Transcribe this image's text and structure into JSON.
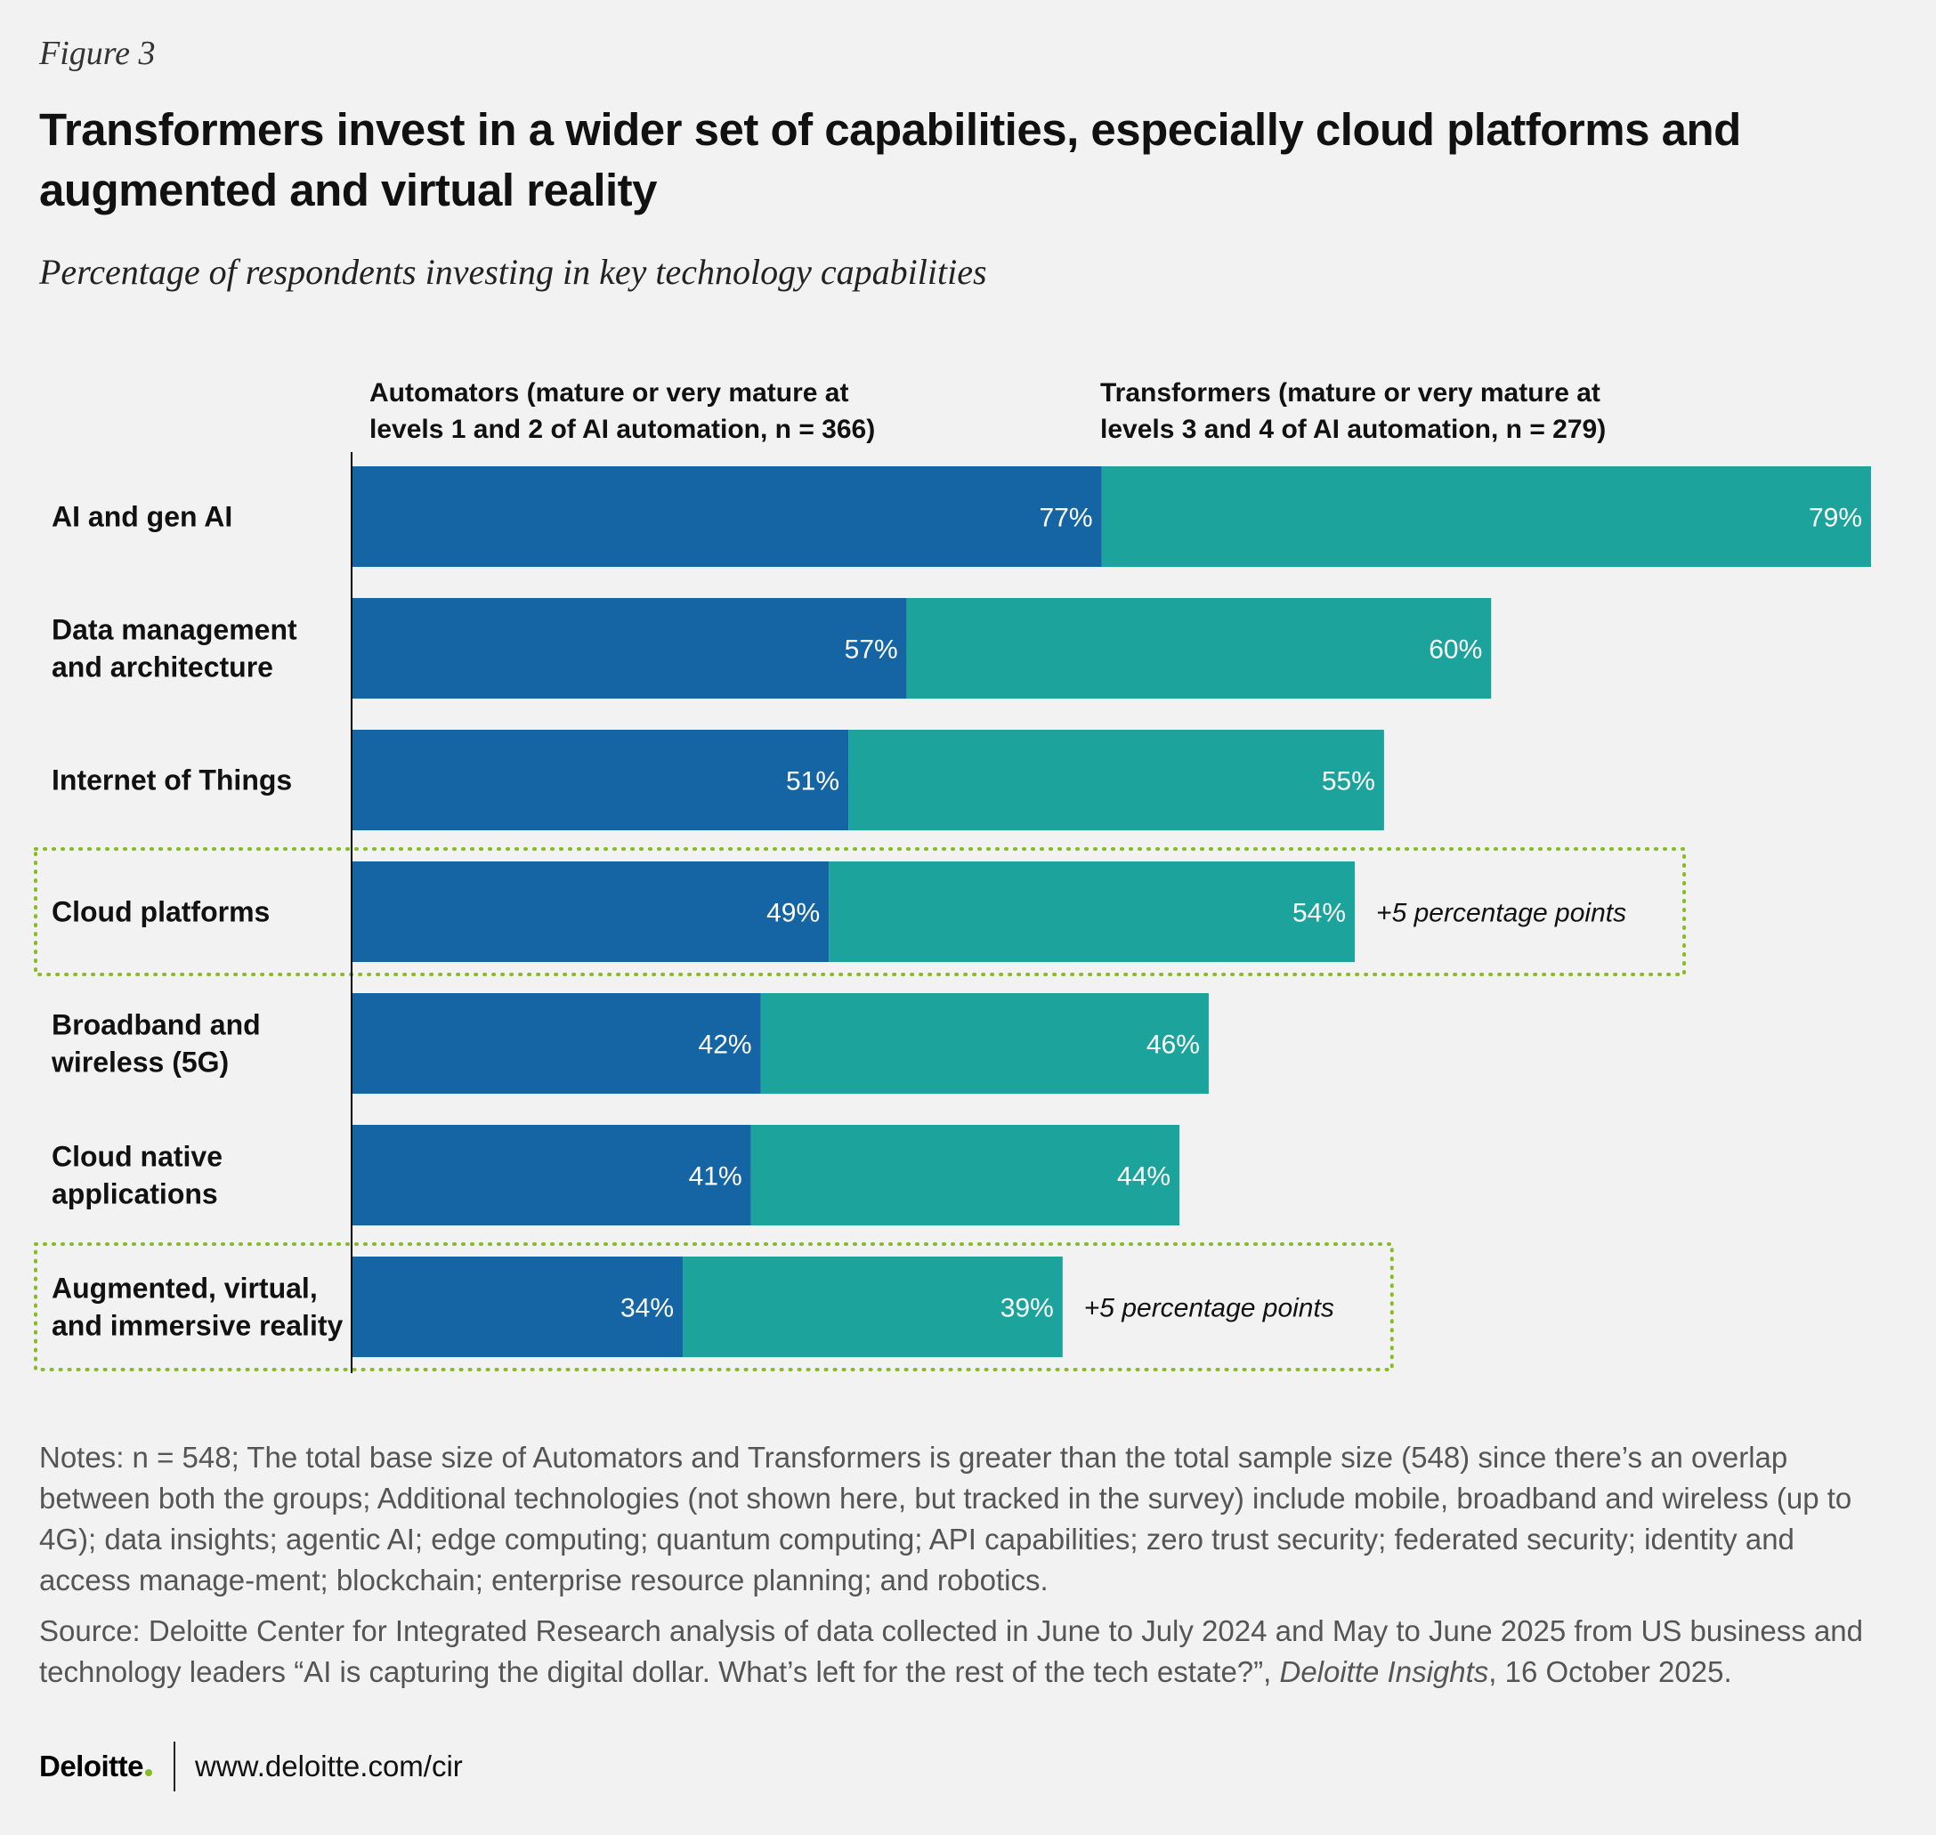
{
  "figure_label": "Figure 3",
  "title": "Transformers invest in a wider set of capabilities, especially cloud platforms and augmented and virtual reality",
  "subtitle": "Percentage of respondents investing in key technology capabilities",
  "colors": {
    "automators": "#1565a5",
    "transformers": "#1ba39c",
    "highlight_border": "#86bc25",
    "axis": "#000000"
  },
  "chart_data": {
    "type": "bar",
    "orientation": "horizontal",
    "stacked_comparison": true,
    "xlim": [
      0,
      80
    ],
    "grid": false,
    "categories": [
      [
        "AI and gen AI"
      ],
      [
        "Data management",
        "and architecture"
      ],
      [
        "Internet of Things"
      ],
      [
        "Cloud platforms"
      ],
      [
        "Broadband and",
        "wireless (5G)"
      ],
      [
        "Cloud  native",
        "applications"
      ],
      [
        "Augmented, virtual,",
        "and immersive reality"
      ]
    ],
    "series": [
      {
        "name": "Automators (mature or very mature at levels 1 and 2 of AI automation, n = 366)",
        "name_lines": [
          "Automators (mature or very mature at",
          "levels 1 and 2 of AI automation, n = 366)"
        ],
        "values": [
          77,
          57,
          51,
          49,
          42,
          41,
          34
        ],
        "labels": [
          "77%",
          "57%",
          "51%",
          "49%",
          "42%",
          "41%",
          "34%"
        ]
      },
      {
        "name": "Transformers (mature or very mature at levels 3 and 4 of AI automation, n = 279)",
        "name_lines": [
          "Transformers (mature or very mature at",
          "levels 3 and 4 of AI automation, n = 279)"
        ],
        "values": [
          79,
          60,
          55,
          54,
          46,
          44,
          39
        ],
        "labels": [
          "79%",
          "60%",
          "55%",
          "54%",
          "46%",
          "44%",
          "39%"
        ]
      }
    ],
    "highlighted": [
      {
        "category_index": 3,
        "annotation": "+5 percentage points"
      },
      {
        "category_index": 6,
        "annotation": "+5 percentage points"
      }
    ]
  },
  "notes": "Notes: n = 548; The total base size of Automators and Transformers is greater than the total sample size (548) since there’s an overlap between both the groups; Additional technologies (not shown here, but tracked in the survey) include mobile, broadband and wireless (up to 4G); data insights; agentic AI; edge computing; quantum computing; API capabilities; zero trust security; federated security; identity and access manage-ment; blockchain; enterprise resource planning; and robotics.",
  "source": {
    "prefix": "Source: Deloitte Center for Integrated Research analysis of data collected in June to July 2024 and May to June 2025 from US business and technology leaders “AI is capturing the digital dollar. What’s left for the rest of the tech estate?”, ",
    "publication": "Deloitte Insights",
    "suffix": ", 16 October 2025."
  },
  "footer": {
    "brand": "Deloitte",
    "url": "www.deloitte.com/cir"
  }
}
